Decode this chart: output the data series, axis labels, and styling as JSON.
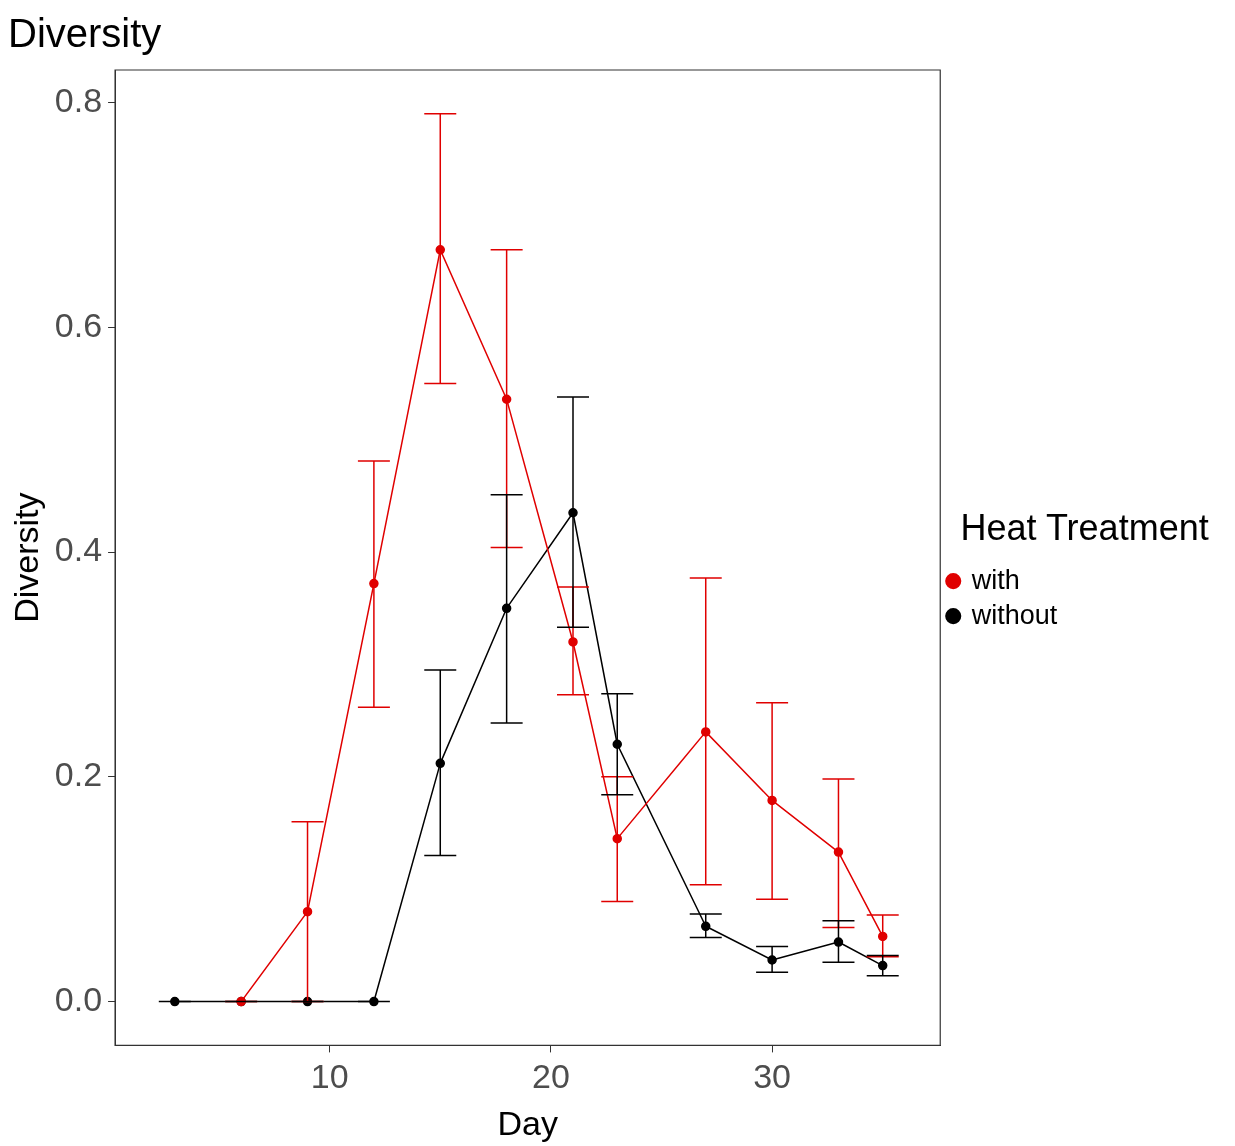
{
  "chart_data": {
    "type": "line",
    "title": "Diversity",
    "xlabel": "Day",
    "ylabel": "Diversity",
    "legend_title": "Heat Treatment",
    "series": [
      {
        "name": "with",
        "color": "#e00000",
        "x": [
          6,
          9,
          12,
          15,
          18,
          21,
          23,
          27,
          30,
          33,
          35
        ],
        "values": [
          0,
          0.08,
          0.372,
          0.669,
          0.536,
          0.32,
          0.145,
          0.24,
          0.179,
          0.133,
          0.058
        ],
        "errors": [
          0,
          [
            0,
            0.16
          ],
          [
            0.262,
            0.481
          ],
          [
            0.55,
            0.79
          ],
          [
            0.404,
            0.669
          ],
          [
            0.273,
            0.369
          ],
          [
            0.089,
            0.2
          ],
          [
            0.104,
            0.377
          ],
          [
            0.091,
            0.266
          ],
          [
            0.066,
            0.198
          ],
          [
            0.04,
            0.077
          ]
        ]
      },
      {
        "name": "without",
        "color": "#000000",
        "x": [
          3,
          6,
          9,
          12,
          15,
          18,
          21,
          23,
          27,
          30,
          33,
          35
        ],
        "values": [
          0,
          0,
          0,
          0,
          0.212,
          0.35,
          0.435,
          0.229,
          0.067,
          0.037,
          0.053,
          0.032
        ],
        "errors": [
          0,
          0,
          0,
          0,
          [
            0.13,
            0.295
          ],
          [
            0.248,
            0.451
          ],
          [
            0.333,
            0.538
          ],
          [
            0.184,
            0.274
          ],
          [
            0.057,
            0.078
          ],
          [
            0.026,
            0.049
          ],
          [
            0.035,
            0.072
          ],
          [
            0.023,
            0.041
          ]
        ]
      }
    ],
    "xlim": [
      0.3,
      37.6
    ],
    "ylim": [
      -0.039,
      0.829
    ],
    "xticks": [
      10,
      20,
      30
    ],
    "yticks": [
      {
        "value": 0,
        "label": "0.0"
      },
      {
        "value": 0.2,
        "label": "0.2"
      },
      {
        "value": 0.4,
        "label": "0.4"
      },
      {
        "value": 0.6,
        "label": "0.6"
      },
      {
        "value": 0.8,
        "label": "0.8"
      }
    ],
    "grid": false,
    "legend": "right",
    "marker": "circle",
    "line_style": "solid"
  }
}
